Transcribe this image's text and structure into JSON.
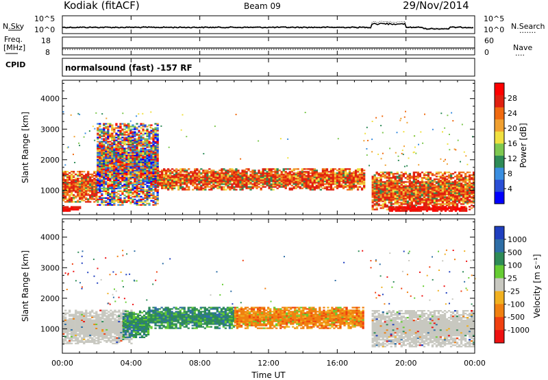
{
  "header": {
    "station": "Kodiak (fitACF)",
    "beam": "Beam 09",
    "date": "29/Nov/2014"
  },
  "strip_nsky": {
    "label": "N.Sky",
    "left_ticks": [
      "10^5",
      "10^0"
    ],
    "right_ticks": [
      "10^5",
      "10^0"
    ],
    "right_label": "N.Search",
    "right_legend": "......."
  },
  "strip_freq": {
    "label_line1": "Freq.",
    "label_line2": "[MHz]",
    "left_ticks": [
      "18",
      "8"
    ],
    "right_ticks": [
      "60",
      "0"
    ],
    "right_label": "Nave",
    "right_legend": "...."
  },
  "strip_cpid": {
    "label": "CPID",
    "mode_text": "normalsound (fast) -157 RF"
  },
  "chart_data": [
    {
      "type": "heatmap",
      "panel": "power",
      "ylabel": "Slant Range [km]",
      "xlabel": "Time UT",
      "x_ticks": [
        "00:00",
        "04:00",
        "08:00",
        "12:00",
        "16:00",
        "20:00",
        "00:00"
      ],
      "x_range_hours": [
        0,
        24
      ],
      "y_ticks": [
        1000,
        2000,
        3000,
        4000
      ],
      "ylim": [
        200,
        4600
      ],
      "colorbar": {
        "label": "Power [dB]",
        "ticks": [
          4,
          8,
          12,
          16,
          20,
          24,
          28
        ],
        "range": [
          0,
          32
        ],
        "colors": [
          "#0000ff",
          "#2a4fd6",
          "#3a8ee0",
          "#2e8b57",
          "#7ec850",
          "#f0e040",
          "#f0a030",
          "#f06a10",
          "#e02010",
          "#ff0000"
        ]
      },
      "echo_bands": [
        {
          "t_start": 0.0,
          "t_end": 2.0,
          "r_low": 600,
          "r_high": 1600,
          "level": "strong"
        },
        {
          "t_start": 0.0,
          "t_end": 1.0,
          "r_low": 300,
          "r_high": 450,
          "level": "very_strong"
        },
        {
          "t_start": 2.0,
          "t_end": 5.5,
          "r_low": 500,
          "r_high": 3200,
          "level": "mixed"
        },
        {
          "t_start": 5.5,
          "t_end": 17.5,
          "r_low": 1000,
          "r_high": 1700,
          "level": "strong"
        },
        {
          "t_start": 18.0,
          "t_end": 24.0,
          "r_low": 350,
          "r_high": 1600,
          "level": "strong"
        },
        {
          "t_start": 19.0,
          "t_end": 23.5,
          "r_low": 300,
          "r_high": 450,
          "level": "very_strong"
        }
      ]
    },
    {
      "type": "heatmap",
      "panel": "velocity",
      "ylabel": "Slant Range [km]",
      "xlabel": "Time UT",
      "x_ticks": [
        "00:00",
        "04:00",
        "08:00",
        "12:00",
        "16:00",
        "20:00",
        "00:00"
      ],
      "x_range_hours": [
        0,
        24
      ],
      "y_ticks": [
        1000,
        2000,
        3000,
        4000
      ],
      "ylim": [
        200,
        4600
      ],
      "colorbar": {
        "label": "Velocity [m s⁻¹]",
        "ticks": [
          "1000",
          "500",
          "100",
          "25",
          "-25",
          "-100",
          "-500",
          "-1000"
        ],
        "colors": [
          "#1f3fbf",
          "#2e6ea6",
          "#2e8b57",
          "#66cc33",
          "#c8c8c0",
          "#f0b020",
          "#f08010",
          "#f04010",
          "#ee1111"
        ]
      },
      "echo_bands": [
        {
          "t_start": 0.0,
          "t_end": 4.0,
          "r_low": 500,
          "r_high": 1600,
          "level": "ground_scatter"
        },
        {
          "t_start": 3.5,
          "t_end": 5.0,
          "r_low": 700,
          "r_high": 1600,
          "level": "positive"
        },
        {
          "t_start": 5.0,
          "t_end": 10.0,
          "r_low": 1000,
          "r_high": 1700,
          "level": "positive"
        },
        {
          "t_start": 10.0,
          "t_end": 17.5,
          "r_low": 1000,
          "r_high": 1700,
          "level": "negative"
        },
        {
          "t_start": 18.0,
          "t_end": 24.0,
          "r_low": 400,
          "r_high": 1600,
          "level": "ground_scatter"
        }
      ]
    }
  ]
}
